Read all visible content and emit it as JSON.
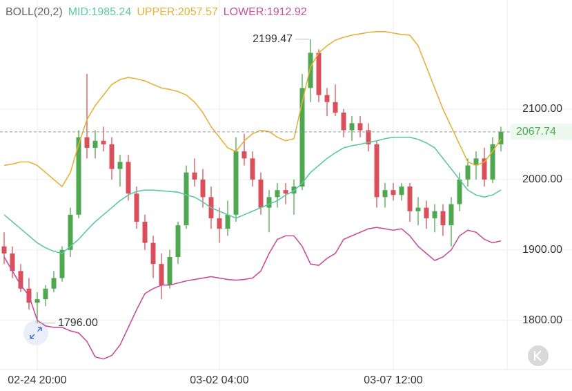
{
  "chart_data": {
    "type": "candlestick",
    "indicator": "BOLL(20,2)",
    "categories": [
      null,
      null,
      null,
      null,
      "02-24 20:00",
      null,
      null,
      null,
      null,
      null,
      null,
      null,
      null,
      null,
      null,
      null,
      null,
      null,
      null,
      null,
      null,
      null,
      null,
      null,
      null,
      null,
      "03-02 04:00",
      null,
      null,
      null,
      null,
      null,
      null,
      null,
      null,
      null,
      null,
      null,
      null,
      null,
      null,
      null,
      null,
      null,
      null,
      null,
      null,
      "03-07 12:00",
      null,
      null,
      null,
      null,
      null,
      null,
      null,
      null,
      null,
      null,
      null,
      null,
      null
    ],
    "open": [
      1905,
      1895,
      1870,
      1845,
      1825,
      1830,
      1845,
      1860,
      1900,
      1950,
      2060,
      2045,
      2055,
      2050,
      2015,
      2025,
      1980,
      1940,
      1910,
      1880,
      1850,
      1890,
      1935,
      2010,
      2000,
      1975,
      1945,
      1930,
      1950,
      2040,
      2030,
      2000,
      1960,
      1975,
      1985,
      1980,
      1990,
      2130,
      2180,
      2120,
      2110,
      2095,
      2070,
      2080,
      2070,
      2050,
      1975,
      1985,
      1978,
      1990,
      1955,
      1960,
      1945,
      1955,
      1935,
      1965,
      2000,
      2020,
      2030,
      2000,
      2050
    ],
    "high": [
      1925,
      1905,
      1880,
      1860,
      1840,
      1850,
      1870,
      1905,
      1960,
      2070,
      2150,
      2070,
      2075,
      2060,
      2035,
      2035,
      1990,
      1950,
      1920,
      1895,
      1900,
      1940,
      2020,
      2030,
      2015,
      1990,
      1960,
      1970,
      2060,
      2065,
      2040,
      2010,
      1985,
      1995,
      1995,
      2000,
      2150,
      2199.47,
      2185,
      2130,
      2135,
      2100,
      2090,
      2090,
      2080,
      2055,
      1995,
      1995,
      1995,
      1995,
      1975,
      1970,
      1965,
      1965,
      1975,
      2010,
      2030,
      2040,
      2045,
      2060,
      2075
    ],
    "low": [
      1880,
      1860,
      1840,
      1815,
      1796,
      1820,
      1840,
      1855,
      1890,
      1945,
      2030,
      2030,
      2040,
      2000,
      1990,
      1970,
      1930,
      1900,
      1860,
      1830,
      1845,
      1880,
      1930,
      1990,
      1960,
      1930,
      1910,
      1920,
      1940,
      2020,
      1990,
      1950,
      1925,
      1960,
      1965,
      1950,
      1985,
      2110,
      2110,
      2090,
      2090,
      2060,
      2055,
      2060,
      2040,
      1960,
      1960,
      1970,
      1970,
      1940,
      1935,
      1930,
      1925,
      1920,
      1905,
      1955,
      1990,
      2000,
      1990,
      1995,
      2040
    ],
    "close": [
      1895,
      1870,
      1845,
      1825,
      1830,
      1845,
      1860,
      1900,
      1950,
      2060,
      2045,
      2055,
      2050,
      2015,
      2025,
      1980,
      1940,
      1910,
      1880,
      1850,
      1890,
      1935,
      2010,
      2000,
      1975,
      1945,
      1930,
      1950,
      2040,
      2030,
      2000,
      1960,
      1975,
      1985,
      1980,
      1990,
      2130,
      2180,
      2120,
      2110,
      2095,
      2070,
      2080,
      2070,
      2050,
      1975,
      1985,
      1978,
      1990,
      1955,
      1960,
      1945,
      1955,
      1935,
      1965,
      2000,
      2020,
      2030,
      2000,
      2050,
      2067.74
    ],
    "up_color": "#4fa84f",
    "down_color": "#d9505a",
    "series": [
      {
        "name": "MID:1985.24",
        "color": "#5cc7a6",
        "values": [
          1950,
          1940,
          1930,
          1920,
          1910,
          1903,
          1898,
          1895,
          1905,
          1915,
          1928,
          1940,
          1950,
          1960,
          1970,
          1978,
          1983,
          1985,
          1985,
          1984,
          1983,
          1982,
          1978,
          1975,
          1968,
          1960,
          1955,
          1950,
          1945,
          1950,
          1955,
          1960,
          1965,
          1970,
          1978,
          1984,
          1995,
          2010,
          2020,
          2030,
          2038,
          2045,
          2048,
          2050,
          2053,
          2055,
          2058,
          2060,
          2060,
          2060,
          2057,
          2052,
          2045,
          2030,
          2015,
          2000,
          1985,
          1978,
          1975,
          1978,
          1985.24
        ]
      },
      {
        "name": "UPPER:2057.57",
        "color": "#e4b23a",
        "values": [
          2020,
          2022,
          2025,
          2025,
          2020,
          2010,
          2000,
          1990,
          2010,
          2050,
          2085,
          2105,
          2120,
          2135,
          2142,
          2145,
          2143,
          2140,
          2135,
          2130,
          2128,
          2125,
          2120,
          2110,
          2095,
          2075,
          2060,
          2045,
          2040,
          2055,
          2065,
          2070,
          2068,
          2060,
          2055,
          2058,
          2110,
          2160,
          2180,
          2190,
          2198,
          2202,
          2205,
          2207,
          2209,
          2210,
          2210,
          2208,
          2206,
          2205,
          2190,
          2160,
          2130,
          2100,
          2075,
          2050,
          2025,
          2020,
          2025,
          2040,
          2057.57
        ]
      },
      {
        "name": "LOWER:1912.92",
        "color": "#c64f9c",
        "values": [
          1890,
          1870,
          1850,
          1835,
          1800,
          1792,
          1790,
          1790,
          1785,
          1782,
          1770,
          1748,
          1745,
          1750,
          1765,
          1790,
          1815,
          1838,
          1845,
          1850,
          1850,
          1853,
          1856,
          1858,
          1860,
          1862,
          1860,
          1858,
          1857,
          1858,
          1860,
          1870,
          1895,
          1915,
          1920,
          1920,
          1905,
          1880,
          1878,
          1888,
          1895,
          1915,
          1920,
          1925,
          1930,
          1932,
          1930,
          1928,
          1930,
          1920,
          1905,
          1895,
          1885,
          1890,
          1900,
          1920,
          1928,
          1925,
          1915,
          1910,
          1912.92
        ]
      }
    ],
    "max_label": {
      "value": 2199.47,
      "label": "2199.47"
    },
    "min_label": {
      "value": 1796,
      "label": "1796.00"
    },
    "last_price": {
      "value": 2067.74,
      "label": "2067.74"
    },
    "ylim": [
      1730,
      2255
    ],
    "yticks": [
      {
        "value": 1800,
        "label": "1800.00"
      },
      {
        "value": 1900,
        "label": "1900.00"
      },
      {
        "value": 2000,
        "label": "2000.00"
      },
      {
        "value": 2100,
        "label": "2100.00"
      }
    ],
    "grid": true
  }
}
